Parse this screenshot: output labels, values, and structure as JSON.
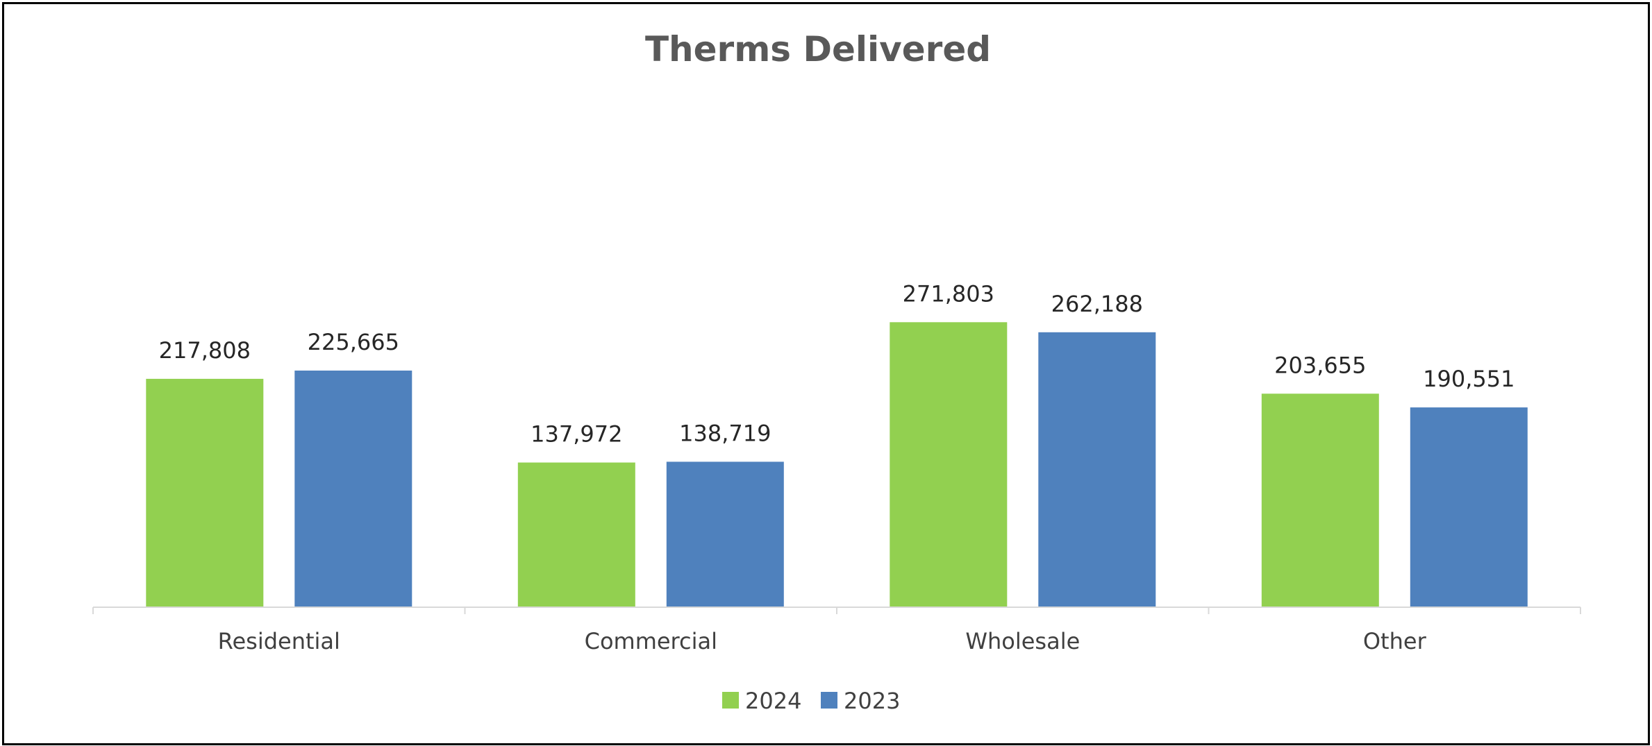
{
  "chart_data": {
    "type": "bar",
    "title": "Therms Delivered",
    "categories": [
      "Residential",
      "Commercial",
      "Wholesale",
      "Other"
    ],
    "series": [
      {
        "name": "2024",
        "color": "#92D050",
        "values": [
          217808,
          137972,
          271803,
          203655
        ],
        "labels": [
          "217,808",
          "137,972",
          "271,803",
          "203,655"
        ]
      },
      {
        "name": "2023",
        "color": "#4F81BD",
        "values": [
          225665,
          138719,
          262188,
          190551
        ],
        "labels": [
          "225,665",
          "138,719",
          "262,188",
          "190,551"
        ]
      }
    ],
    "xlabel": "",
    "ylabel": "",
    "ylim": [
      0,
      300000
    ],
    "grid": false,
    "legend_position": "bottom",
    "axis_color": "#D9D9D9",
    "border_color": "#000000"
  }
}
